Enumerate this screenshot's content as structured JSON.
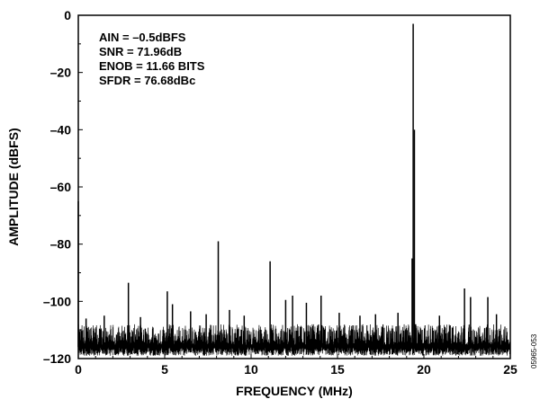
{
  "chart_data": {
    "type": "line",
    "title": "",
    "xlabel": "FREQUENCY (MHz)",
    "ylabel": "AMPLITUDE (dBFS)",
    "xlim": [
      0,
      25
    ],
    "ylim": [
      -120,
      0
    ],
    "xticks": [
      0,
      5,
      10,
      15,
      20,
      25
    ],
    "yticks": [
      0,
      -20,
      -40,
      -60,
      -80,
      -100,
      -120
    ],
    "xtick_labels": [
      "0",
      "5",
      "10",
      "15",
      "20",
      "25"
    ],
    "ytick_labels": [
      "0",
      "–20",
      "–40",
      "–60",
      "–80",
      "–100",
      "–120"
    ],
    "grid": false,
    "legend": "none",
    "annotations": [
      "AIN = –0.5dBFS",
      "SNR = 71.96dB",
      "ENOB = 11.66 BITS",
      "SFDR = 76.68dBc"
    ],
    "figure_id": "05965-053",
    "noise_floor_dbfs": [
      -119,
      -108
    ],
    "series": [
      {
        "color": "#000000",
        "spurs": [
          {
            "x": 0.0,
            "y": -65.0
          },
          {
            "x": 0.45,
            "y": -106.0
          },
          {
            "x": 1.5,
            "y": -105.0
          },
          {
            "x": 2.9,
            "y": -93.5
          },
          {
            "x": 3.6,
            "y": -105.5
          },
          {
            "x": 5.15,
            "y": -96.5
          },
          {
            "x": 5.45,
            "y": -101.0
          },
          {
            "x": 6.5,
            "y": -103.5
          },
          {
            "x": 7.4,
            "y": -104.5
          },
          {
            "x": 8.1,
            "y": -79.0
          },
          {
            "x": 8.75,
            "y": -103.0
          },
          {
            "x": 9.6,
            "y": -105.0
          },
          {
            "x": 11.1,
            "y": -86.0
          },
          {
            "x": 12.0,
            "y": -99.5
          },
          {
            "x": 12.4,
            "y": -98.0
          },
          {
            "x": 13.2,
            "y": -100.5
          },
          {
            "x": 14.05,
            "y": -98.0
          },
          {
            "x": 15.1,
            "y": -104.0
          },
          {
            "x": 16.3,
            "y": -105.0
          },
          {
            "x": 17.2,
            "y": -104.5
          },
          {
            "x": 18.5,
            "y": -104.0
          },
          {
            "x": 19.38,
            "y": -3.0
          },
          {
            "x": 19.32,
            "y": -85.0
          },
          {
            "x": 19.45,
            "y": -40.0
          },
          {
            "x": 19.52,
            "y": -108.0
          },
          {
            "x": 20.9,
            "y": -105.0
          },
          {
            "x": 22.35,
            "y": -95.5
          },
          {
            "x": 22.7,
            "y": -98.5
          },
          {
            "x": 23.7,
            "y": -98.5
          },
          {
            "x": 24.2,
            "y": -104.5
          }
        ]
      }
    ]
  }
}
